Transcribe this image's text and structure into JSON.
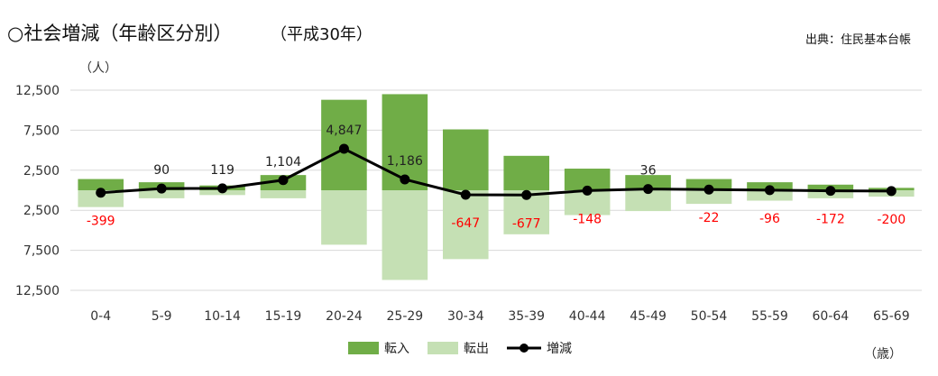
{
  "chart_data": {
    "type": "bar",
    "title": "○社会増減（年齢区分別）",
    "subtitle": "（平成30年）",
    "source": "出典：住民基本台帳",
    "y_unit": "（人）",
    "x_unit": "（歳）",
    "categories": [
      "0-4",
      "5-9",
      "10-14",
      "15-19",
      "20-24",
      "25-29",
      "30-34",
      "35-39",
      "40-44",
      "45-49",
      "50-54",
      "55-59",
      "60-64",
      "65-69"
    ],
    "y_ticks": [
      "12,500",
      "7,500",
      "2,500",
      "2,500",
      "7,500",
      "12,500"
    ],
    "ylim": [
      -12500,
      12500
    ],
    "series": [
      {
        "name": "転入",
        "kind": "bar",
        "color": "#70ad47",
        "values": [
          1400,
          1000,
          600,
          1900,
          11300,
          12000,
          7600,
          4300,
          2700,
          1900,
          1400,
          1000,
          700,
          300
        ]
      },
      {
        "name": "転出",
        "kind": "bar",
        "color": "#c5e0b4",
        "values": [
          -2100,
          -1000,
          -600,
          -1000,
          -6800,
          -11200,
          -8600,
          -5500,
          -3100,
          -2600,
          -1700,
          -1300,
          -1000,
          -800
        ]
      },
      {
        "name": "増減",
        "kind": "line",
        "color": "#000000",
        "values": [
          -399,
          90,
          119,
          1104,
          4847,
          1186,
          -647,
          -677,
          -148,
          36,
          -22,
          -96,
          -172,
          -200
        ],
        "labels": [
          "-399",
          "90",
          "119",
          "1,104",
          "4,847",
          "1,186",
          "-647",
          "-677",
          "-148",
          "36",
          "-22",
          "-96",
          "-172",
          "-200"
        ]
      }
    ],
    "legend": [
      "転入",
      "転出",
      "増減"
    ],
    "legend_position": "bottom",
    "grid": true,
    "colors": {
      "negative_label": "#ff0000",
      "positive_label": "#222222",
      "grid": "#d9d9d9"
    }
  }
}
